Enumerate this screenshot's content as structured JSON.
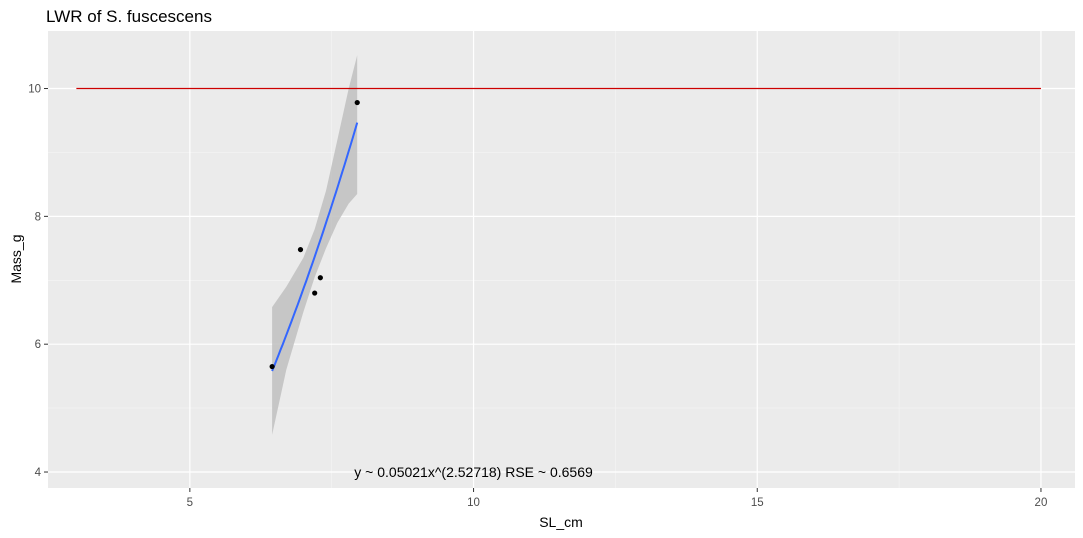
{
  "chart_data": {
    "type": "scatter",
    "title": "LWR of S. fuscescens",
    "xlabel": "SL_cm",
    "ylabel": "Mass_g",
    "xlim": [
      2.5,
      20.6
    ],
    "ylim": [
      3.75,
      10.9
    ],
    "x_ticks": [
      5,
      10,
      15,
      20
    ],
    "y_ticks": [
      4,
      6,
      8,
      10
    ],
    "x_tick_labels": [
      "5",
      "10",
      "15",
      "20"
    ],
    "y_tick_labels": [
      "4",
      "6",
      "8",
      "10"
    ],
    "grid": true,
    "panel_background": "#ebebeb",
    "points": [
      {
        "x": 6.45,
        "y": 5.65
      },
      {
        "x": 6.95,
        "y": 7.48
      },
      {
        "x": 7.2,
        "y": 6.8
      },
      {
        "x": 7.3,
        "y": 7.04
      },
      {
        "x": 7.95,
        "y": 9.78
      }
    ],
    "point_color": "#000000",
    "fit_line": {
      "color": "#3366ff",
      "a": 0.05021,
      "b": 2.52718,
      "x_range": [
        6.45,
        7.95
      ]
    },
    "confidence_band": [
      {
        "x": 6.45,
        "lower": 4.58,
        "upper": 6.58
      },
      {
        "x": 6.7,
        "lower": 5.6,
        "upper": 6.9
      },
      {
        "x": 7.0,
        "lower": 6.5,
        "upper": 7.35
      },
      {
        "x": 7.2,
        "lower": 7.05,
        "upper": 7.8
      },
      {
        "x": 7.4,
        "lower": 7.5,
        "upper": 8.4
      },
      {
        "x": 7.6,
        "lower": 7.9,
        "upper": 9.2
      },
      {
        "x": 7.8,
        "lower": 8.2,
        "upper": 10.0
      },
      {
        "x": 7.95,
        "lower": 8.35,
        "upper": 10.52
      }
    ],
    "band_color": "#bfbfbf",
    "reference_line": {
      "y": 10,
      "x_range": [
        3,
        20
      ],
      "color": "#cc0000"
    },
    "annotation": {
      "text": "y ~ 0.05021x^(2.52718)  RSE ~ 0.6569",
      "x": 10.0,
      "y": 4.0
    }
  }
}
